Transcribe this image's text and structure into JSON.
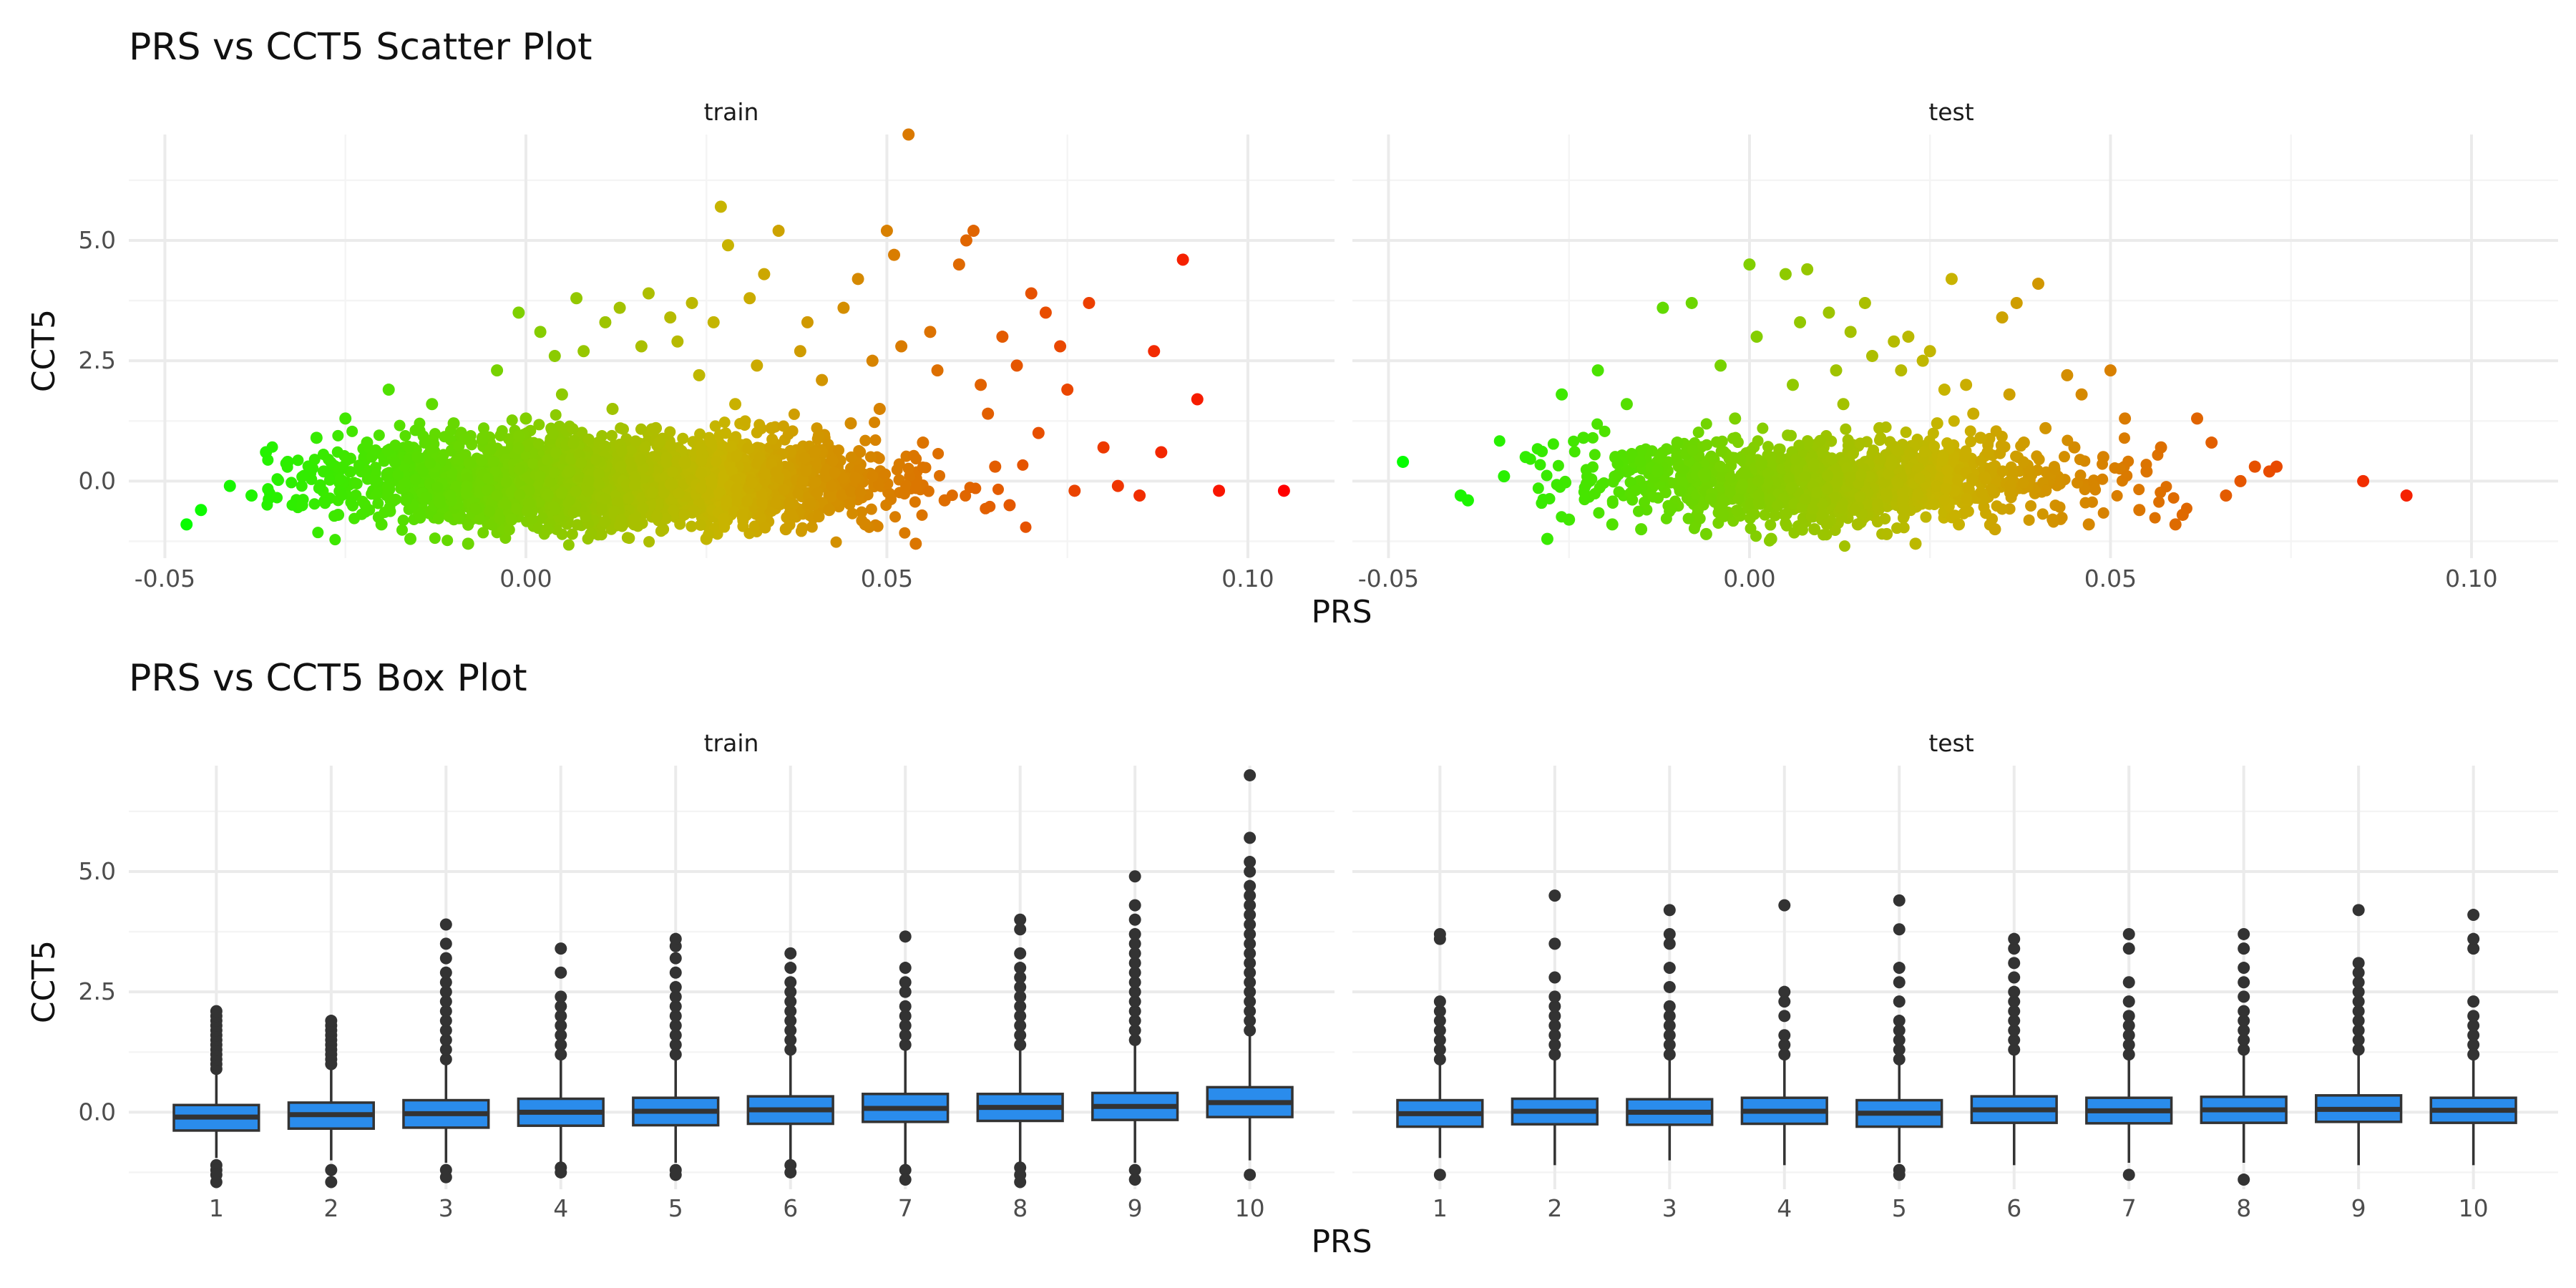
{
  "figure": {
    "background": "#ffffff",
    "grid_major": "#ebebeb",
    "grid_minor": "#f4f4f4"
  },
  "chart_data": [
    {
      "type": "scatter",
      "title": "PRS vs CCT5 Scatter Plot",
      "xlabel": "PRS",
      "ylabel": "CCT5",
      "facets": [
        "train",
        "test"
      ],
      "xlim": [
        -0.055,
        0.112
      ],
      "ylim": [
        -1.6,
        7.2
      ],
      "x_ticks": [
        -0.05,
        0.0,
        0.05,
        0.1
      ],
      "x_tick_labels": [
        "-0.05",
        "0.00",
        "0.05",
        "0.10"
      ],
      "y_ticks": [
        0.0,
        2.5,
        5.0
      ],
      "y_tick_labels": [
        "0.0",
        "2.5",
        "5.0"
      ],
      "grid": true,
      "legend": "none",
      "color_scale": {
        "by": "PRS",
        "low": "#00ff00",
        "mid": "#c8b400",
        "high": "#ff0000"
      },
      "series": [
        {
          "facet": "train",
          "x": [
            -0.047,
            -0.045,
            -0.041,
            -0.038,
            -0.036,
            -0.033,
            -0.031,
            -0.029,
            -0.028,
            -0.026,
            -0.025,
            -0.022,
            -0.02,
            -0.019,
            -0.016,
            -0.015,
            -0.013,
            -0.012,
            -0.01,
            -0.008,
            -0.006,
            -0.004,
            -0.002,
            -0.001,
            0.0,
            0.002,
            0.003,
            0.004,
            0.005,
            0.006,
            0.007,
            0.008,
            0.009,
            0.011,
            0.012,
            0.013,
            0.015,
            0.016,
            0.017,
            0.018,
            0.019,
            0.02,
            0.021,
            0.022,
            0.023,
            0.024,
            0.025,
            0.026,
            0.027,
            0.028,
            0.029,
            0.03,
            0.031,
            0.032,
            0.033,
            0.034,
            0.035,
            0.036,
            0.038,
            0.039,
            0.04,
            0.041,
            0.042,
            0.044,
            0.045,
            0.046,
            0.047,
            0.048,
            0.049,
            0.05,
            0.051,
            0.052,
            0.053,
            0.054,
            0.055,
            0.056,
            0.057,
            0.058,
            0.06,
            0.061,
            0.062,
            0.063,
            0.064,
            0.065,
            0.066,
            0.067,
            0.068,
            0.07,
            0.071,
            0.072,
            0.074,
            0.075,
            0.076,
            0.078,
            0.08,
            0.082,
            0.085,
            0.087,
            0.088,
            0.091,
            0.093,
            0.096,
            0.105
          ],
          "y": [
            -0.9,
            -0.6,
            -0.1,
            -0.3,
            0.6,
            0.4,
            -0.5,
            0.9,
            0.2,
            -0.7,
            1.3,
            0.8,
            -0.9,
            1.9,
            -1.2,
            0.5,
            1.6,
            -0.4,
            1.2,
            -1.3,
            0.9,
            2.3,
            -0.8,
            3.5,
            1.3,
            3.1,
            -1.0,
            2.6,
            1.8,
            0.2,
            3.8,
            2.7,
            -1.1,
            3.3,
            1.5,
            3.6,
            -0.9,
            2.8,
            3.9,
            1.1,
            -1.0,
            3.4,
            2.9,
            0.4,
            3.7,
            2.2,
            -1.2,
            3.3,
            5.7,
            4.9,
            1.6,
            -0.7,
            3.8,
            2.4,
            4.3,
            1.1,
            5.2,
            -1.0,
            2.7,
            3.3,
            0.6,
            2.1,
            -0.6,
            3.6,
            1.2,
            4.2,
            -0.9,
            2.5,
            1.5,
            5.2,
            4.7,
            2.8,
            7.2,
            -1.3,
            0.8,
            3.1,
            2.3,
            -0.4,
            4.5,
            5.0,
            5.2,
            2.0,
            1.4,
            0.3,
            3.0,
            -0.5,
            2.4,
            3.9,
            1.0,
            3.5,
            2.8,
            1.9,
            -0.2,
            3.7,
            0.7,
            -0.1,
            -0.3,
            2.7,
            0.6,
            4.6,
            1.7,
            -0.2,
            -0.2
          ]
        },
        {
          "facet": "test",
          "x": [
            -0.048,
            -0.04,
            -0.039,
            -0.034,
            -0.031,
            -0.028,
            -0.026,
            -0.025,
            -0.023,
            -0.021,
            -0.019,
            -0.017,
            -0.015,
            -0.012,
            -0.01,
            -0.008,
            -0.006,
            -0.004,
            -0.002,
            0.0,
            0.001,
            0.003,
            0.005,
            0.006,
            0.007,
            0.008,
            0.009,
            0.011,
            0.012,
            0.013,
            0.014,
            0.015,
            0.016,
            0.017,
            0.018,
            0.019,
            0.02,
            0.021,
            0.022,
            0.023,
            0.024,
            0.025,
            0.026,
            0.027,
            0.028,
            0.029,
            0.03,
            0.031,
            0.032,
            0.033,
            0.034,
            0.035,
            0.036,
            0.037,
            0.038,
            0.04,
            0.041,
            0.042,
            0.044,
            0.045,
            0.046,
            0.047,
            0.049,
            0.05,
            0.052,
            0.054,
            0.055,
            0.057,
            0.059,
            0.06,
            0.062,
            0.064,
            0.066,
            0.068,
            0.07,
            0.072,
            0.073,
            0.085,
            0.091
          ],
          "y": [
            0.4,
            -0.3,
            -0.4,
            0.1,
            0.5,
            -1.2,
            1.8,
            -0.8,
            0.9,
            2.3,
            -0.9,
            1.6,
            -1.0,
            3.6,
            0.8,
            3.7,
            -1.1,
            2.4,
            1.3,
            4.5,
            3.0,
            -1.2,
            4.3,
            2.0,
            3.3,
            4.4,
            -1.0,
            3.5,
            2.3,
            1.6,
            3.1,
            -0.9,
            3.7,
            2.6,
            1.1,
            -1.1,
            2.9,
            2.3,
            3.0,
            -1.3,
            2.5,
            2.7,
            1.2,
            1.9,
            4.2,
            -0.9,
            2.0,
            1.4,
            0.9,
            0.6,
            -1.0,
            3.4,
            1.8,
            3.7,
            0.8,
            4.1,
            1.1,
            -0.8,
            2.2,
            0.7,
            1.8,
            -0.9,
            0.5,
            2.3,
            1.3,
            -0.6,
            0.2,
            0.7,
            -0.9,
            -0.7,
            1.3,
            0.8,
            -0.3,
            0.0,
            0.3,
            0.2,
            0.3,
            0.0,
            -0.3
          ]
        }
      ]
    },
    {
      "type": "box",
      "title": "PRS vs CCT5 Box Plot",
      "xlabel": "PRS",
      "ylabel": "CCT5",
      "facets": [
        "train",
        "test"
      ],
      "categories": [
        "1",
        "2",
        "3",
        "4",
        "5",
        "6",
        "7",
        "8",
        "9",
        "10"
      ],
      "ylim": [
        -1.6,
        7.2
      ],
      "y_ticks": [
        0.0,
        2.5,
        5.0
      ],
      "y_tick_labels": [
        "0.0",
        "2.5",
        "5.0"
      ],
      "grid": true,
      "legend": "none",
      "box_fill": "#2a8cec",
      "box_stroke": "#333333",
      "series": [
        {
          "facet": "train",
          "boxes": [
            {
              "q1": -0.38,
              "median": -0.1,
              "q3": 0.15,
              "low": -0.95,
              "high": 0.85,
              "outliers": [
                0.9,
                1.0,
                1.1,
                1.2,
                1.3,
                1.4,
                1.5,
                1.6,
                1.7,
                1.8,
                1.9,
                2.0,
                2.1,
                -1.1,
                -1.2,
                -1.3,
                -1.45
              ]
            },
            {
              "q1": -0.34,
              "median": -0.05,
              "q3": 0.2,
              "low": -1.0,
              "high": 0.95,
              "outliers": [
                1.0,
                1.1,
                1.2,
                1.3,
                1.4,
                1.5,
                1.6,
                1.7,
                1.8,
                1.9,
                -1.2,
                -1.45
              ]
            },
            {
              "q1": -0.32,
              "median": -0.03,
              "q3": 0.25,
              "low": -1.05,
              "high": 1.05,
              "outliers": [
                1.1,
                1.3,
                1.5,
                1.7,
                1.9,
                2.1,
                2.3,
                2.5,
                2.7,
                2.9,
                3.2,
                3.5,
                3.9,
                -1.2,
                -1.35
              ]
            },
            {
              "q1": -0.28,
              "median": 0.0,
              "q3": 0.28,
              "low": -1.05,
              "high": 1.1,
              "outliers": [
                1.2,
                1.4,
                1.6,
                1.8,
                2.0,
                2.2,
                2.4,
                2.9,
                3.4,
                -1.15,
                -1.25
              ]
            },
            {
              "q1": -0.27,
              "median": 0.02,
              "q3": 0.3,
              "low": -1.05,
              "high": 1.15,
              "outliers": [
                1.2,
                1.4,
                1.6,
                1.8,
                2.0,
                2.2,
                2.4,
                2.6,
                2.9,
                3.2,
                3.45,
                3.6,
                -1.2,
                -1.3
              ]
            },
            {
              "q1": -0.24,
              "median": 0.05,
              "q3": 0.33,
              "low": -1.05,
              "high": 1.2,
              "outliers": [
                1.3,
                1.5,
                1.7,
                1.9,
                2.1,
                2.3,
                2.5,
                2.7,
                3.0,
                3.3,
                -1.1,
                -1.25
              ]
            },
            {
              "q1": -0.2,
              "median": 0.08,
              "q3": 0.38,
              "low": -1.1,
              "high": 1.3,
              "outliers": [
                1.4,
                1.6,
                1.8,
                2.0,
                2.2,
                2.5,
                2.7,
                3.0,
                3.65,
                -1.2,
                -1.4
              ]
            },
            {
              "q1": -0.18,
              "median": 0.1,
              "q3": 0.38,
              "low": -1.1,
              "high": 1.3,
              "outliers": [
                1.4,
                1.6,
                1.8,
                2.0,
                2.2,
                2.4,
                2.6,
                2.8,
                3.0,
                3.3,
                3.8,
                4.0,
                -1.15,
                -1.3,
                -1.45
              ]
            },
            {
              "q1": -0.16,
              "median": 0.12,
              "q3": 0.4,
              "low": -1.05,
              "high": 1.4,
              "outliers": [
                1.5,
                1.7,
                1.9,
                2.1,
                2.3,
                2.5,
                2.7,
                2.9,
                3.1,
                3.3,
                3.5,
                3.7,
                4.0,
                4.3,
                4.9,
                -1.2,
                -1.4
              ]
            },
            {
              "q1": -0.1,
              "median": 0.2,
              "q3": 0.52,
              "low": -1.0,
              "high": 1.6,
              "outliers": [
                1.7,
                1.9,
                2.1,
                2.3,
                2.5,
                2.7,
                2.9,
                3.1,
                3.3,
                3.5,
                3.7,
                3.9,
                4.1,
                4.3,
                4.5,
                4.7,
                5.0,
                5.2,
                5.7,
                7.0,
                -1.3
              ]
            }
          ]
        },
        {
          "facet": "test",
          "boxes": [
            {
              "q1": -0.3,
              "median": -0.03,
              "q3": 0.25,
              "low": -0.95,
              "high": 1.0,
              "outliers": [
                1.1,
                1.3,
                1.5,
                1.7,
                1.9,
                2.1,
                2.3,
                3.6,
                3.7,
                -1.3
              ]
            },
            {
              "q1": -0.25,
              "median": 0.02,
              "q3": 0.28,
              "low": -1.1,
              "high": 1.15,
              "outliers": [
                1.2,
                1.4,
                1.6,
                1.8,
                2.0,
                2.2,
                2.4,
                2.8,
                3.5,
                4.5
              ]
            },
            {
              "q1": -0.26,
              "median": 0.0,
              "q3": 0.27,
              "low": -1.0,
              "high": 1.1,
              "outliers": [
                1.2,
                1.4,
                1.6,
                1.8,
                2.0,
                2.2,
                2.6,
                3.0,
                3.5,
                3.7,
                4.2
              ]
            },
            {
              "q1": -0.24,
              "median": 0.02,
              "q3": 0.3,
              "low": -1.1,
              "high": 1.1,
              "outliers": [
                1.2,
                1.4,
                1.6,
                2.0,
                2.3,
                2.5,
                4.3
              ]
            },
            {
              "q1": -0.3,
              "median": -0.02,
              "q3": 0.25,
              "low": -1.05,
              "high": 1.05,
              "outliers": [
                1.1,
                1.3,
                1.5,
                1.7,
                1.9,
                2.3,
                2.7,
                3.0,
                3.8,
                4.4,
                -1.2,
                -1.3
              ]
            },
            {
              "q1": -0.22,
              "median": 0.05,
              "q3": 0.33,
              "low": -1.1,
              "high": 1.2,
              "outliers": [
                1.3,
                1.5,
                1.7,
                1.9,
                2.1,
                2.3,
                2.5,
                2.8,
                3.1,
                3.4,
                3.6
              ]
            },
            {
              "q1": -0.23,
              "median": 0.03,
              "q3": 0.3,
              "low": -1.05,
              "high": 1.15,
              "outliers": [
                1.2,
                1.4,
                1.6,
                1.8,
                2.0,
                2.3,
                2.7,
                3.4,
                3.7,
                -1.3
              ]
            },
            {
              "q1": -0.22,
              "median": 0.05,
              "q3": 0.32,
              "low": -1.05,
              "high": 1.2,
              "outliers": [
                1.3,
                1.5,
                1.7,
                1.9,
                2.1,
                2.4,
                2.7,
                3.0,
                3.4,
                3.7,
                -1.4
              ]
            },
            {
              "q1": -0.2,
              "median": 0.06,
              "q3": 0.35,
              "low": -1.1,
              "high": 1.25,
              "outliers": [
                1.3,
                1.5,
                1.7,
                1.9,
                2.1,
                2.3,
                2.5,
                2.7,
                2.9,
                3.1,
                4.2
              ]
            },
            {
              "q1": -0.22,
              "median": 0.04,
              "q3": 0.3,
              "low": -1.1,
              "high": 1.15,
              "outliers": [
                1.2,
                1.4,
                1.6,
                1.8,
                2.0,
                2.3,
                3.4,
                3.6,
                4.1
              ]
            }
          ]
        }
      ]
    }
  ]
}
